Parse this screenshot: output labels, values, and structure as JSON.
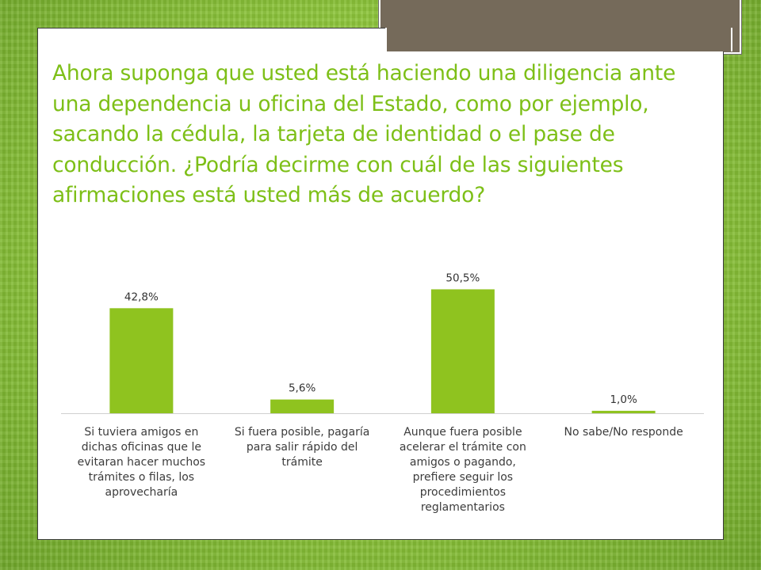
{
  "slide": {
    "title": "Ahora suponga que usted está haciendo una diligencia ante una dependencia u oficina del Estado, como por ejemplo, sacando la cédula, la tarjeta de identidad o el pase de conducción. ¿Podría decirme con cuál de las siguientes afirmaciones está usted más de acuerdo?"
  },
  "colors": {
    "bar": "#8fc31f",
    "title": "#7dbf17",
    "background": "#9bcf45",
    "tab": "#756a5a"
  },
  "chart_data": {
    "type": "bar",
    "categories": [
      "Si tuviera amigos en dichas oficinas que le evitaran hacer muchos trámites o filas, los aprovecharía",
      "Si fuera posible, pagaría para salir rápido del trámite",
      "Aunque fuera posible acelerar el trámite con amigos o pagando, prefiere seguir los procedimientos reglamentarios",
      "No sabe/No responde"
    ],
    "values": [
      42.8,
      5.6,
      50.5,
      1.0
    ],
    "data_labels": [
      "42,8%",
      "5,6%",
      "50,5%",
      "1,0%"
    ],
    "ylim": [
      0,
      55
    ],
    "grid": false,
    "legend": "none"
  }
}
